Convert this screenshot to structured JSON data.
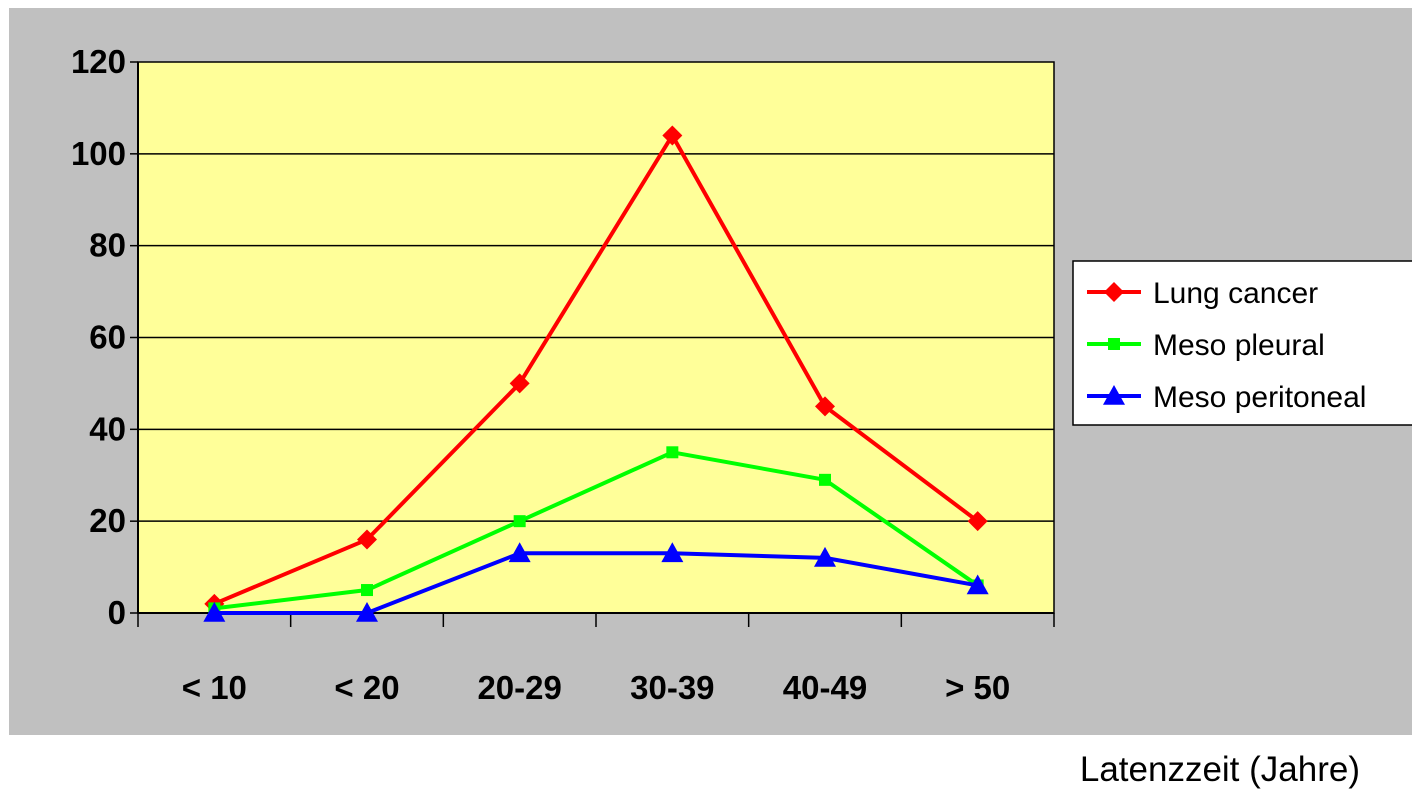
{
  "chart_data": {
    "type": "line",
    "title": "",
    "xlabel": "Latenzzeit (Jahre)",
    "ylabel": "",
    "categories": [
      "< 10",
      "< 20",
      "20-29",
      "30-39",
      "40-49",
      "> 50"
    ],
    "ylim": [
      0,
      120
    ],
    "yticks": [
      "0",
      "20",
      "40",
      "60",
      "80",
      "100",
      "120"
    ],
    "grid": true,
    "legend_position": "right",
    "plot_background": "#ffff99",
    "chart_background": "#c0c0c0",
    "series": [
      {
        "name": "Lung cancer",
        "values": [
          2,
          16,
          50,
          104,
          45,
          20
        ],
        "color": "#ff0000",
        "marker": "diamond"
      },
      {
        "name": "Meso pleural",
        "values": [
          1,
          5,
          20,
          35,
          29,
          6
        ],
        "color": "#00ff00",
        "marker": "square"
      },
      {
        "name": "Meso peritoneal",
        "values": [
          0,
          0,
          13,
          13,
          12,
          6
        ],
        "color": "#0000ff",
        "marker": "triangle"
      }
    ]
  }
}
